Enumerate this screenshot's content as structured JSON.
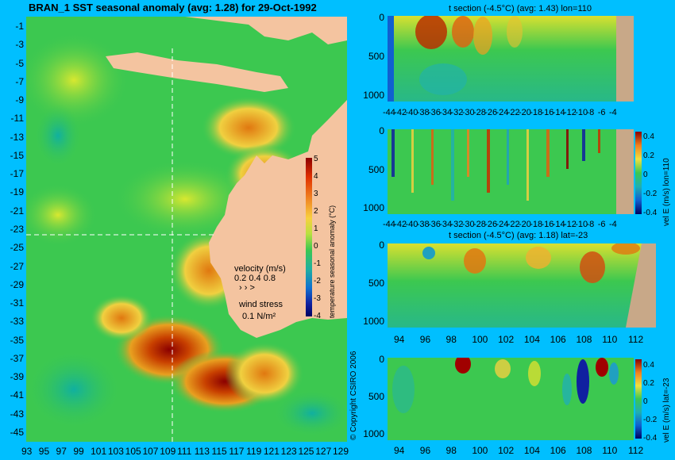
{
  "main_map": {
    "title": "BRAN_1  SST seasonal anomaly (avg: 1.28) for 29-Oct-1992",
    "lat_ticks": [
      "-1",
      "-3",
      "-5",
      "-7",
      "-9",
      "-11",
      "-13",
      "-15",
      "-17",
      "-19",
      "-21",
      "-23",
      "-25",
      "-27",
      "-29",
      "-31",
      "-33",
      "-35",
      "-37",
      "-39",
      "-41",
      "-43",
      "-45"
    ],
    "lon_ticks": [
      "93",
      "95",
      "97",
      "99",
      "101",
      "103",
      "105",
      "107",
      "109",
      "111",
      "113",
      "115",
      "117",
      "119",
      "121",
      "123",
      "125",
      "127",
      "129"
    ],
    "colorbar": {
      "label": "temperature seasonal anomaly (°C)",
      "ticks": [
        "5",
        "4",
        "3",
        "2",
        "1",
        "0",
        "-1",
        "-2",
        "-3",
        "-4"
      ],
      "range": [
        -4,
        5
      ]
    },
    "velocity_legend": {
      "title": "velocity (m/s)",
      "values": "0.2 0.4 0.8",
      "arrows": "›  ›  >"
    },
    "wind_legend": {
      "title": "wind stress",
      "value": "0.1 N/m²"
    },
    "section_markers": {
      "lon": 110,
      "lat": -23
    },
    "copyright": "© Copyright CSIRO 2006"
  },
  "panels": [
    {
      "title": "t section (-4.5°C) (avg: 1.43) lon=110",
      "x_ticks": [
        "-44",
        "-42",
        "-40",
        "-38",
        "-36",
        "-34",
        "-32",
        "-30",
        "-28",
        "-26",
        "-24",
        "-22",
        "-20",
        "-18",
        "-16",
        "-14",
        "-12",
        "-10",
        "-8",
        "-6",
        "-4"
      ],
      "y_ticks": [
        "0",
        "500",
        "1000"
      ]
    },
    {
      "title": "",
      "x_ticks": [
        "-44",
        "-42",
        "-40",
        "-38",
        "-36",
        "-34",
        "-32",
        "-30",
        "-28",
        "-26",
        "-24",
        "-22",
        "-20",
        "-18",
        "-16",
        "-14",
        "-12",
        "-10",
        "-8",
        "-6",
        "-4"
      ],
      "y_ticks": [
        "0",
        "500",
        "1000"
      ],
      "colorbar": {
        "label": "vel E (m/s) lon=110",
        "ticks": [
          "0.4",
          "0.2",
          "0",
          "-0.2",
          "-0.4"
        ]
      }
    },
    {
      "title": "t section (-4.5°C) (avg: 1.18) lat=-23",
      "x_ticks": [
        "94",
        "96",
        "98",
        "100",
        "102",
        "104",
        "106",
        "108",
        "110",
        "112"
      ],
      "y_ticks": [
        "0",
        "500",
        "1000"
      ]
    },
    {
      "title": "",
      "x_ticks": [
        "94",
        "96",
        "98",
        "100",
        "102",
        "104",
        "106",
        "108",
        "110",
        "112"
      ],
      "y_ticks": [
        "0",
        "500",
        "1000"
      ],
      "colorbar": {
        "label": "vel E (m/s) lat=-23",
        "ticks": [
          "0.4",
          "0.2",
          "0",
          "-0.2",
          "-0.4"
        ]
      }
    }
  ],
  "colors": {
    "background": "#00bfff",
    "land": "#f4c4a0",
    "ocean_base": "#3cc850"
  }
}
